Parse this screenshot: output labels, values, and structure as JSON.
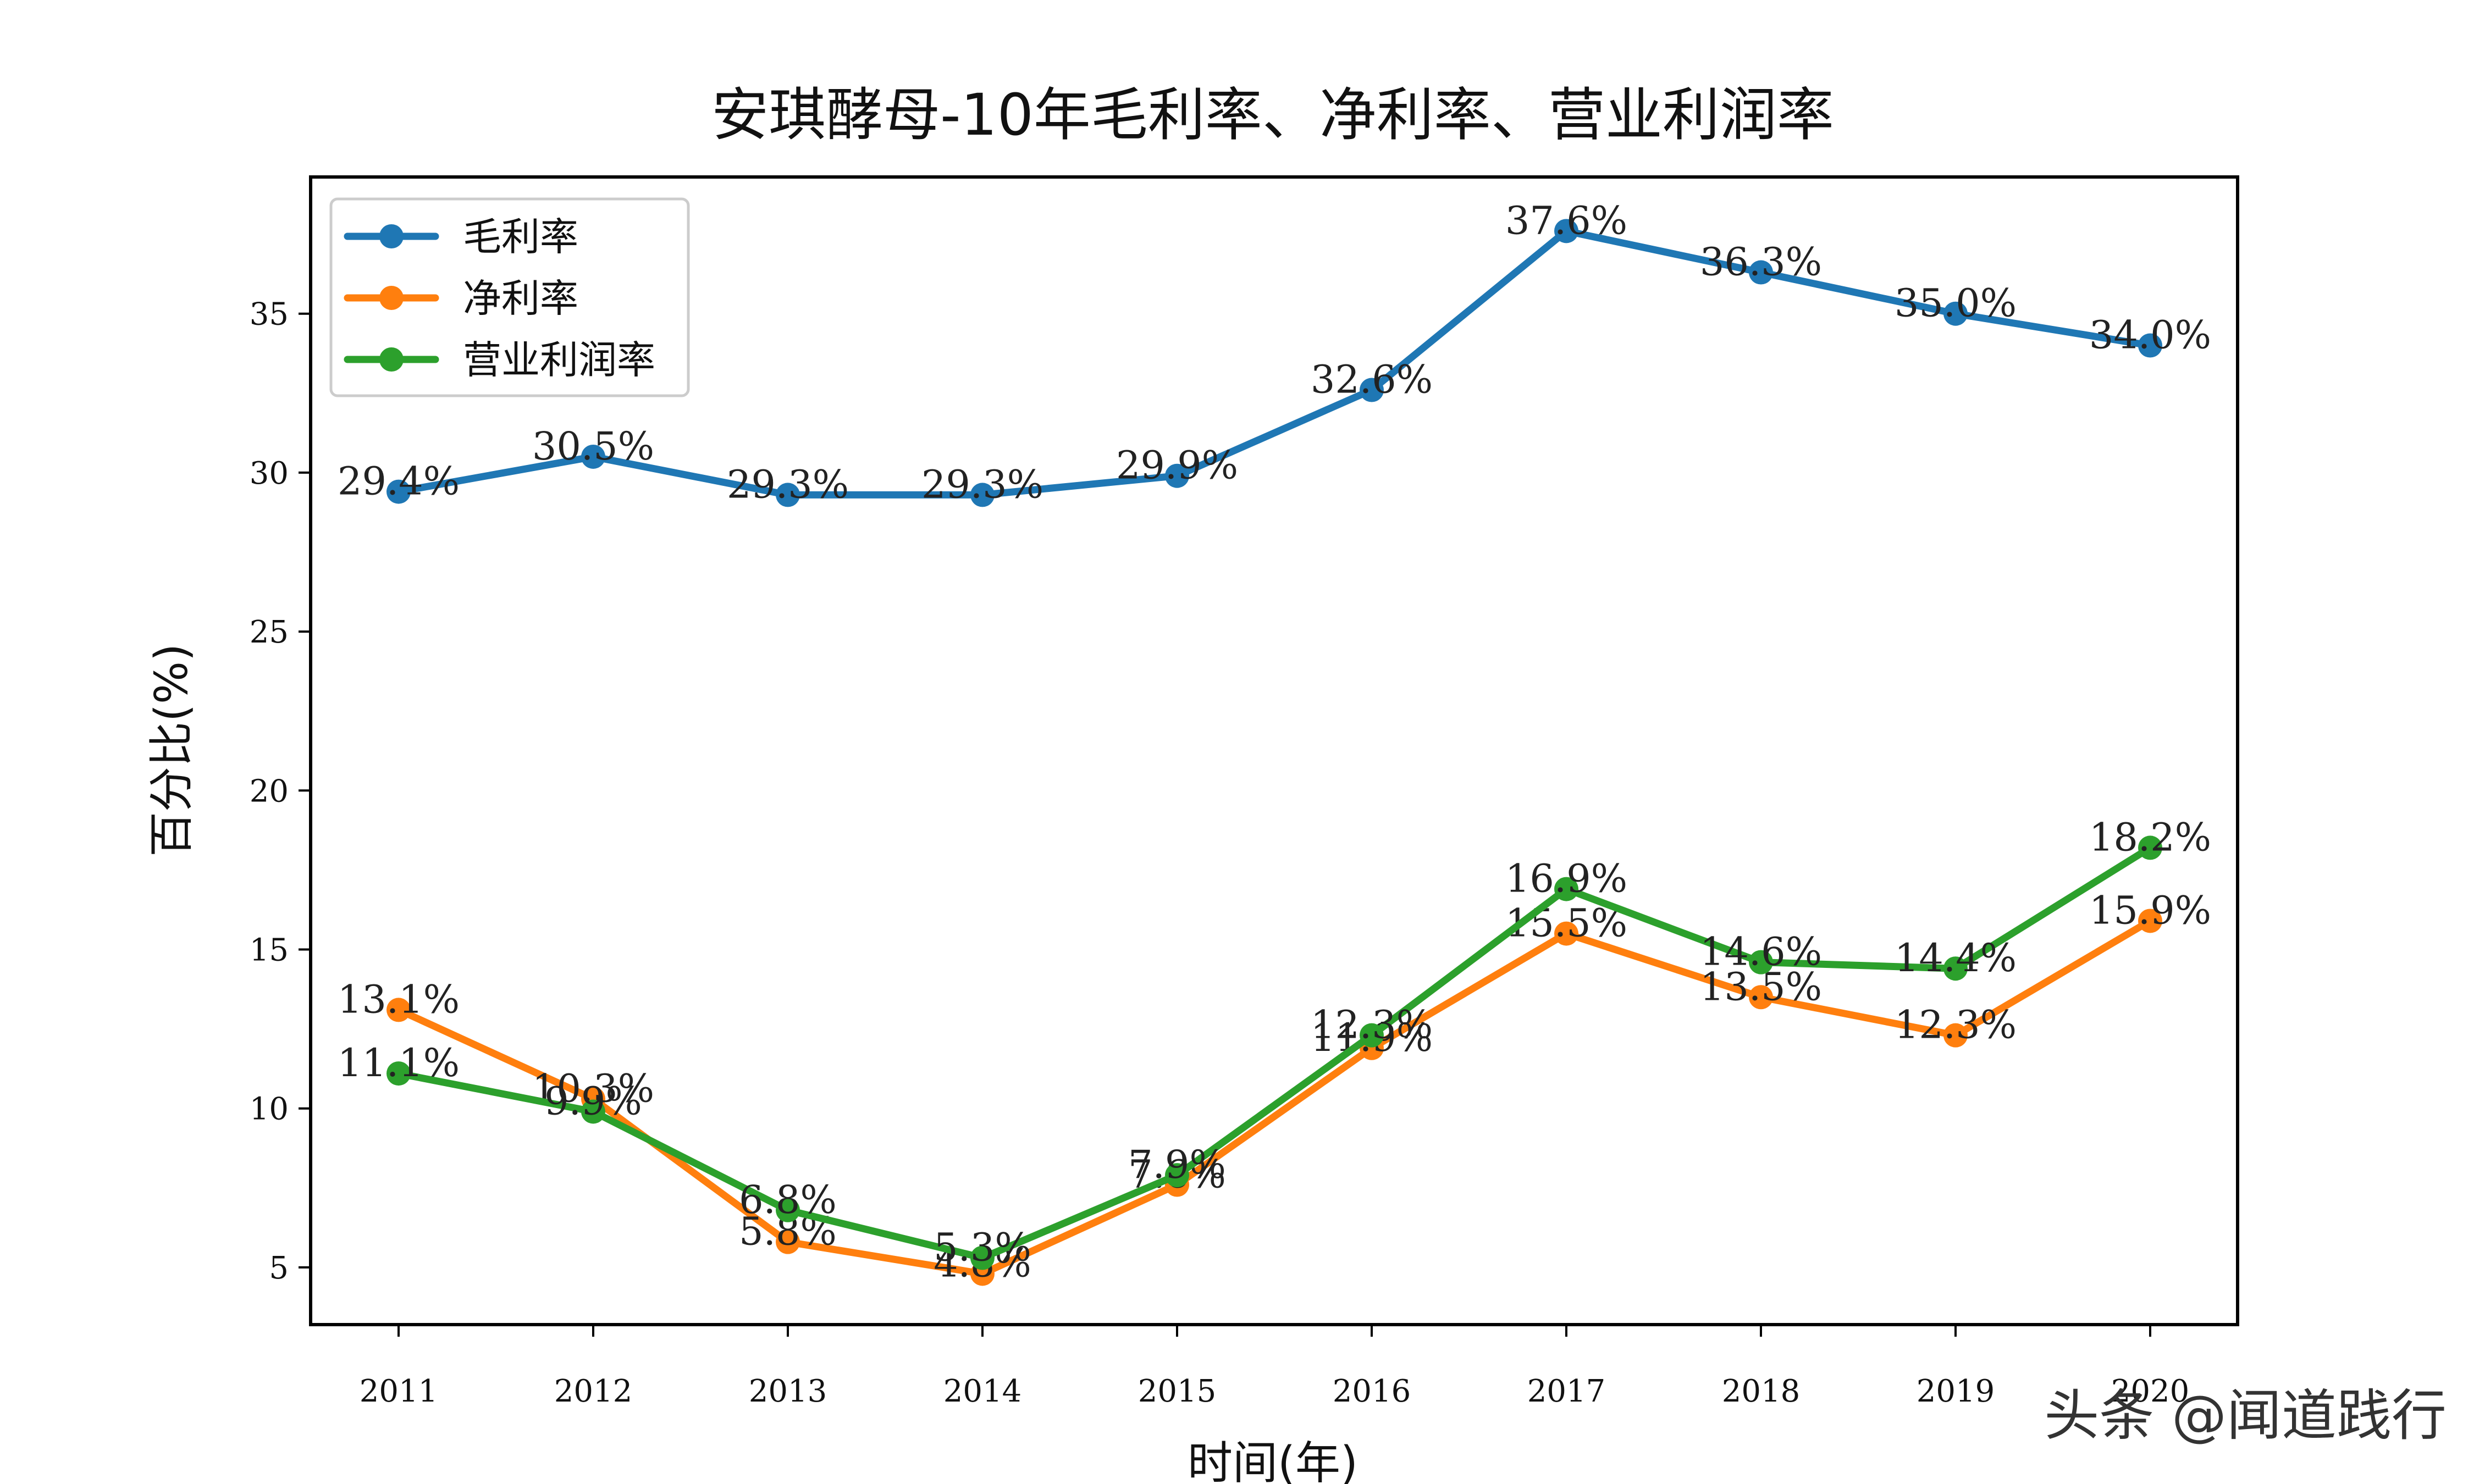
{
  "chart_data": {
    "type": "line",
    "title": "安琪酵母-10年毛利率、净利率、营业利润率",
    "xlabel": "时间(年)",
    "ylabel": "百分比(%)",
    "categories": [
      "2011",
      "2012",
      "2013",
      "2014",
      "2015",
      "2016",
      "2017",
      "2018",
      "2019",
      "2020"
    ],
    "ylim": [
      3.2,
      39.3
    ],
    "yticks": [
      5,
      10,
      15,
      20,
      25,
      30,
      35
    ],
    "grid": false,
    "legend_position": "upper-left",
    "series": [
      {
        "name": "毛利率",
        "color": "#1f77b4",
        "values": [
          29.4,
          30.5,
          29.3,
          29.3,
          29.9,
          32.6,
          37.6,
          36.3,
          35.0,
          34.0
        ],
        "labels": [
          "29.4%",
          "30.5%",
          "29.3%",
          "29.3%",
          "29.9%",
          "32.6%",
          "37.6%",
          "36.3%",
          "35.0%",
          "34.0%"
        ]
      },
      {
        "name": "净利率",
        "color": "#ff7f0e",
        "values": [
          13.1,
          10.3,
          5.8,
          4.8,
          7.6,
          11.9,
          15.5,
          13.5,
          12.3,
          15.9
        ],
        "labels": [
          "13.1%",
          "10.3%",
          "5.8%",
          "4.8%",
          "7.6%",
          "11.9%",
          "15.5%",
          "13.5%",
          "12.3%",
          "15.9%"
        ]
      },
      {
        "name": "营业利润率",
        "color": "#2ca02c",
        "values": [
          11.1,
          9.9,
          6.8,
          5.3,
          7.9,
          12.3,
          16.9,
          14.6,
          14.4,
          18.2
        ],
        "labels": [
          "11.1%",
          "9.9%",
          "6.8%",
          "5.3%",
          "7.9%",
          "12.3%",
          "16.9%",
          "14.6%",
          "14.4%",
          "18.2%"
        ]
      }
    ]
  },
  "watermark": "头条 @闻道践行"
}
